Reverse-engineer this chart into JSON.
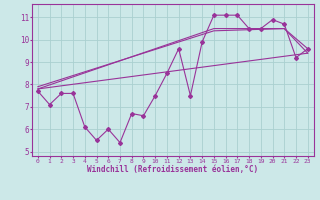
{
  "bg_color": "#cce8e8",
  "line_color": "#993399",
  "grid_color": "#aad0d0",
  "xlabel": "Windchill (Refroidissement éolien,°C)",
  "ylim": [
    4.8,
    11.6
  ],
  "xlim": [
    -0.5,
    23.5
  ],
  "yticks": [
    5,
    6,
    7,
    8,
    9,
    10,
    11
  ],
  "xticks": [
    0,
    1,
    2,
    3,
    4,
    5,
    6,
    7,
    8,
    9,
    10,
    11,
    12,
    13,
    14,
    15,
    16,
    17,
    18,
    19,
    20,
    21,
    22,
    23
  ],
  "line1_x": [
    0,
    1,
    2,
    3,
    4,
    5,
    6,
    7,
    8,
    9,
    10,
    11,
    12,
    13,
    14,
    15,
    16,
    17,
    18,
    19,
    20,
    21,
    22,
    23
  ],
  "line1_y": [
    7.7,
    7.1,
    7.6,
    7.6,
    6.1,
    5.5,
    6.0,
    5.4,
    6.7,
    6.6,
    7.5,
    8.5,
    9.6,
    7.5,
    9.9,
    11.1,
    11.1,
    11.1,
    10.5,
    10.5,
    10.9,
    10.7,
    9.2,
    9.6
  ],
  "line2_x": [
    0,
    23
  ],
  "line2_y": [
    7.8,
    9.4
  ],
  "line3_x": [
    0,
    15,
    21,
    23
  ],
  "line3_y": [
    7.8,
    10.5,
    10.5,
    9.6
  ],
  "line4_x": [
    0,
    15,
    21,
    23
  ],
  "line4_y": [
    7.9,
    10.4,
    10.5,
    9.4
  ]
}
